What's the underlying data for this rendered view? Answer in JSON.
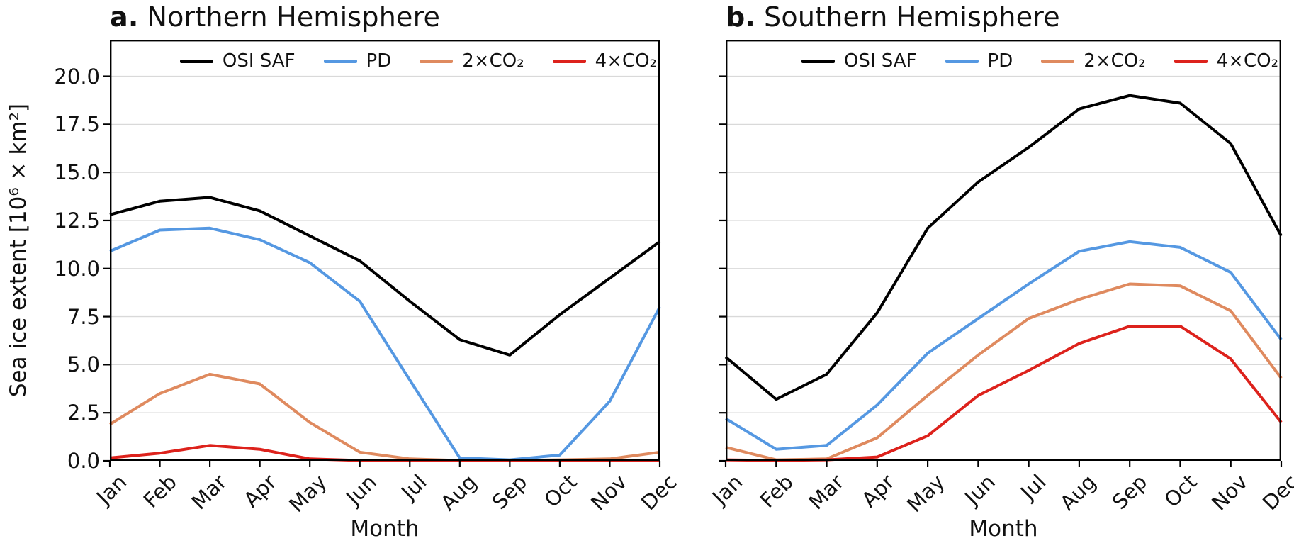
{
  "figure": {
    "background": "#ffffff",
    "xlabel": "Month",
    "ylabel": "Sea ice extent [10⁶ × km²]"
  },
  "legend": {
    "entries": [
      {
        "label": "OSI SAF",
        "color": "#000000"
      },
      {
        "label": "PD",
        "color": "#5598E2"
      },
      {
        "label": "2×CO₂",
        "color": "#DF8A5F"
      },
      {
        "label": "4×CO₂",
        "color": "#DD221C"
      }
    ]
  },
  "chart_data": [
    {
      "panel": "a",
      "type": "line",
      "title_letter": "a.",
      "title": "Northern Hemisphere",
      "xlabel": "Month",
      "ylabel": "Sea ice extent [10⁶ × km²]",
      "categories": [
        "Jan",
        "Feb",
        "Mar",
        "Apr",
        "May",
        "Jun",
        "Jul",
        "Aug",
        "Sep",
        "Oct",
        "Nov",
        "Dec"
      ],
      "ylim": [
        0,
        21.9
      ],
      "yticks": [
        0,
        2.5,
        5,
        7.5,
        10,
        12.5,
        15,
        17.5,
        20
      ],
      "ytick_labels": [
        "0.0",
        "2.5",
        "5.0",
        "7.5",
        "10.0",
        "12.5",
        "15.0",
        "17.5",
        "20.0"
      ],
      "show_ytick_labels": true,
      "grid": true,
      "legend_position": "upper-right-inside",
      "series": [
        {
          "name": "OSI SAF",
          "color": "#000000",
          "values": [
            12.8,
            13.5,
            13.7,
            13.0,
            11.7,
            10.4,
            8.3,
            6.3,
            5.5,
            7.6,
            9.5,
            11.4
          ]
        },
        {
          "name": "PD",
          "color": "#5598E2",
          "values": [
            10.9,
            12.0,
            12.1,
            11.5,
            10.3,
            8.3,
            4.2,
            0.15,
            0.05,
            0.3,
            3.1,
            8.0
          ]
        },
        {
          "name": "2×CO₂",
          "color": "#DF8A5F",
          "values": [
            1.9,
            3.5,
            4.5,
            4.0,
            2.0,
            0.45,
            0.1,
            0.02,
            0.02,
            0.05,
            0.1,
            0.45
          ]
        },
        {
          "name": "4×CO₂",
          "color": "#DD221C",
          "values": [
            0.15,
            0.4,
            0.8,
            0.6,
            0.1,
            0.02,
            0.02,
            0.02,
            0.02,
            0.02,
            0.02,
            0.02
          ]
        }
      ]
    },
    {
      "panel": "b",
      "type": "line",
      "title_letter": "b.",
      "title": "Southern Hemisphere",
      "xlabel": "Month",
      "ylabel": "Sea ice extent [10⁶ × km²]",
      "categories": [
        "Jan",
        "Feb",
        "Mar",
        "Apr",
        "May",
        "Jun",
        "Jul",
        "Aug",
        "Sep",
        "Oct",
        "Nov",
        "Dec"
      ],
      "ylim": [
        0,
        21.9
      ],
      "yticks": [
        0,
        2.5,
        5,
        7.5,
        10,
        12.5,
        15,
        17.5,
        20
      ],
      "ytick_labels": [
        "0.0",
        "2.5",
        "5.0",
        "7.5",
        "10.0",
        "12.5",
        "15.0",
        "17.5",
        "20.0"
      ],
      "show_ytick_labels": false,
      "grid": true,
      "legend_position": "upper-right-inside",
      "series": [
        {
          "name": "OSI SAF",
          "color": "#000000",
          "values": [
            5.4,
            3.2,
            4.5,
            7.7,
            12.1,
            14.5,
            16.3,
            18.3,
            19.0,
            18.6,
            16.5,
            11.7
          ]
        },
        {
          "name": "PD",
          "color": "#5598E2",
          "values": [
            2.2,
            0.6,
            0.8,
            2.9,
            5.6,
            7.4,
            9.2,
            10.9,
            11.4,
            11.1,
            9.8,
            6.3
          ]
        },
        {
          "name": "2×CO₂",
          "color": "#DF8A5F",
          "values": [
            0.7,
            0.05,
            0.1,
            1.2,
            3.4,
            5.5,
            7.4,
            8.4,
            9.2,
            9.1,
            7.8,
            4.3
          ]
        },
        {
          "name": "4×CO₂",
          "color": "#DD221C",
          "values": [
            0.05,
            0.02,
            0.05,
            0.2,
            1.3,
            3.4,
            4.7,
            6.1,
            7.0,
            7.0,
            5.3,
            2.0
          ]
        }
      ]
    }
  ]
}
